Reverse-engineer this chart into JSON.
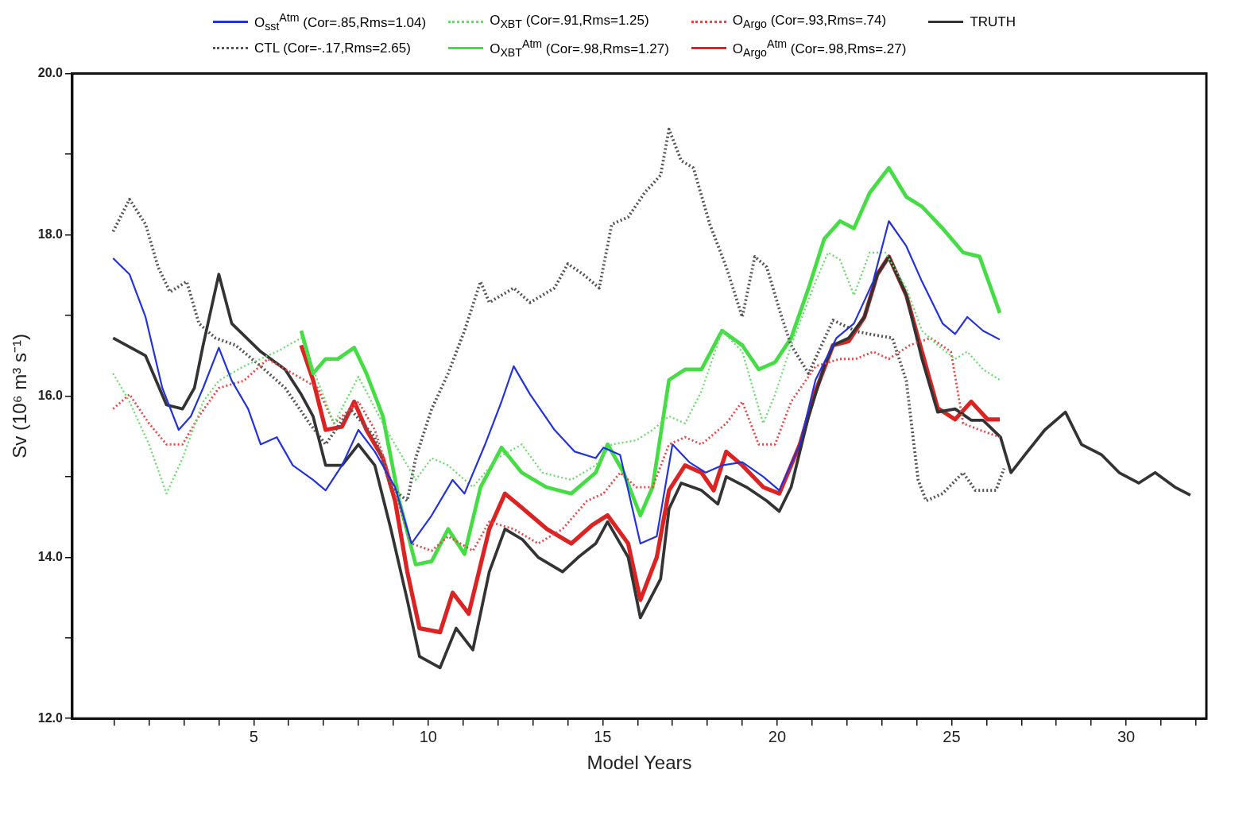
{
  "chart_data": {
    "type": "line",
    "xlabel": "Model Years",
    "ylabel": "Sv (10⁶ m³ s⁻¹)",
    "xlim": [
      -0.2,
      32.3
    ],
    "ylim": [
      12,
      20
    ],
    "xticks": [
      {
        "value": 1,
        "label": null
      },
      {
        "value": 2,
        "label": null
      },
      {
        "value": 3,
        "label": null
      },
      {
        "value": 4,
        "label": null
      },
      5,
      {
        "value": 6,
        "label": null
      },
      {
        "value": 7,
        "label": null
      },
      {
        "value": 8,
        "label": null
      },
      {
        "value": 9,
        "label": null
      },
      10,
      {
        "value": 11,
        "label": null
      },
      {
        "value": 12,
        "label": null
      },
      {
        "value": 13,
        "label": null
      },
      {
        "value": 14,
        "label": null
      },
      15,
      {
        "value": 16,
        "label": null
      },
      {
        "value": 17,
        "label": null
      },
      {
        "value": 18,
        "label": null
      },
      {
        "value": 19,
        "label": null
      },
      20,
      {
        "value": 21,
        "label": null
      },
      {
        "value": 22,
        "label": null
      },
      {
        "value": 23,
        "label": null
      },
      {
        "value": 24,
        "label": null
      },
      25,
      {
        "value": 26,
        "label": null
      },
      {
        "value": 27,
        "label": null
      },
      {
        "value": 28,
        "label": null
      },
      {
        "value": 29,
        "label": null
      },
      30,
      {
        "value": 31,
        "label": null
      },
      {
        "value": 32,
        "label": null
      }
    ],
    "yticks": [
      {
        "value": 12,
        "label": "12.0"
      },
      {
        "value": 13,
        "label": null
      },
      {
        "value": 14,
        "label": "14.0"
      },
      {
        "value": 15,
        "label": null
      },
      {
        "value": 16,
        "label": "16.0"
      },
      {
        "value": 17,
        "label": null
      },
      {
        "value": 18,
        "label": "18.0"
      },
      {
        "value": 19,
        "label": null
      },
      {
        "value": 20,
        "label": "20.0"
      }
    ],
    "grid": false,
    "legend": "top",
    "series": [
      {
        "name": "O$_{sst}$$^{Atm}$ (Cor=.85,Rms=1.04)",
        "color": "#2233dd",
        "line_style": "solid",
        "x": [
          0.97,
          1.44,
          1.9,
          2.38,
          2.85,
          3.2,
          3.55,
          4.0,
          4.37,
          4.84,
          5.2,
          5.66,
          6.12,
          6.7,
          7.06,
          7.53,
          8.0,
          8.47,
          9.05,
          9.52,
          10.1,
          10.7,
          11.04,
          11.63,
          12.1,
          12.45,
          12.92,
          13.62,
          14.2,
          14.8,
          15.02,
          15.5,
          16.08,
          16.55,
          17.0,
          17.48,
          17.95,
          18.42,
          19.0,
          19.6,
          20.06,
          20.65,
          21.1,
          21.7,
          22.2,
          22.75,
          23.2,
          23.7,
          24.15,
          24.74,
          25.1,
          25.45,
          25.9,
          26.38
        ],
        "values": [
          17.71,
          17.51,
          16.98,
          16.1,
          15.58,
          15.75,
          16.1,
          16.6,
          16.19,
          15.84,
          15.4,
          15.49,
          15.14,
          14.96,
          14.83,
          15.14,
          15.58,
          15.31,
          14.87,
          14.17,
          14.52,
          14.96,
          14.79,
          15.4,
          15.93,
          16.37,
          16.02,
          15.58,
          15.31,
          15.23,
          15.36,
          15.27,
          14.17,
          14.26,
          15.4,
          15.18,
          15.05,
          15.14,
          15.18,
          15.0,
          14.83,
          15.4,
          16.2,
          16.72,
          16.9,
          17.42,
          18.17,
          17.86,
          17.42,
          16.9,
          16.77,
          16.98,
          16.81,
          16.7
        ]
      },
      {
        "name": "O$_{XBT}$ (Cor=.91,Rms=1.25)",
        "color": "#66dd66",
        "line_style": "dotted",
        "x": [
          0.97,
          1.44,
          2.0,
          2.5,
          2.96,
          3.55,
          4.0,
          4.72,
          5.66,
          6.36,
          6.83,
          7.3,
          8.0,
          8.7,
          9.17,
          9.64,
          10.1,
          10.57,
          11.28,
          11.98,
          12.68,
          13.27,
          14.1,
          14.8,
          15.26,
          15.96,
          16.43,
          16.9,
          17.36,
          17.83,
          18.42,
          19.0,
          19.6,
          19.94,
          20.4,
          21.1,
          21.46,
          21.8,
          22.2,
          22.65,
          23.1,
          23.7,
          24.15,
          24.6,
          25.1,
          25.45,
          25.9,
          26.38
        ],
        "values": [
          16.28,
          15.93,
          15.4,
          14.79,
          15.23,
          15.93,
          16.19,
          16.37,
          16.55,
          16.72,
          16.19,
          15.66,
          16.24,
          15.66,
          15.31,
          14.96,
          15.23,
          15.14,
          14.87,
          15.23,
          15.4,
          15.05,
          14.96,
          15.14,
          15.4,
          15.45,
          15.58,
          15.75,
          15.66,
          16.06,
          16.81,
          16.55,
          15.66,
          16.02,
          16.63,
          17.42,
          17.78,
          17.69,
          17.25,
          17.78,
          17.78,
          17.34,
          16.81,
          16.63,
          16.46,
          16.55,
          16.33,
          16.2
        ]
      },
      {
        "name": "O$_{Argo}$ (Cor=.93,Rms=.74)",
        "color": "#ee4444",
        "line_style": "dotted",
        "x": [
          0.97,
          1.44,
          2.0,
          2.5,
          2.96,
          3.43,
          4.0,
          4.72,
          5.4,
          6.12,
          6.83,
          7.3,
          8.0,
          8.47,
          9.05,
          9.52,
          10.1,
          10.57,
          11.28,
          11.75,
          12.45,
          13.15,
          13.85,
          14.55,
          15.02,
          15.5,
          15.96,
          16.43,
          16.9,
          17.36,
          17.83,
          18.54,
          19.0,
          19.47,
          19.94,
          20.4,
          21.1,
          21.8,
          22.25,
          22.75,
          23.2,
          23.8,
          24.4,
          24.98,
          25.33,
          25.8,
          26.38
        ],
        "values": [
          15.84,
          16.02,
          15.66,
          15.4,
          15.4,
          15.75,
          16.1,
          16.19,
          16.46,
          16.28,
          16.1,
          15.66,
          15.93,
          15.58,
          14.79,
          14.17,
          14.08,
          14.26,
          14.08,
          14.44,
          14.35,
          14.17,
          14.35,
          14.7,
          14.79,
          15.05,
          14.87,
          14.87,
          15.4,
          15.49,
          15.4,
          15.66,
          15.93,
          15.4,
          15.4,
          15.93,
          16.37,
          16.46,
          16.46,
          16.55,
          16.46,
          16.63,
          16.72,
          16.55,
          15.66,
          15.58,
          15.49
        ]
      },
      {
        "name": "TRUTH",
        "color": "#333333",
        "line_style": "solid",
        "x": [
          0.97,
          1.9,
          2.5,
          2.96,
          3.3,
          3.55,
          4.0,
          4.37,
          5.2,
          5.9,
          6.36,
          6.7,
          7.06,
          7.53,
          8.0,
          8.47,
          8.93,
          9.4,
          9.75,
          10.34,
          10.8,
          11.28,
          11.75,
          12.2,
          12.7,
          13.15,
          13.85,
          14.3,
          14.8,
          15.14,
          15.73,
          16.08,
          16.66,
          16.9,
          17.25,
          17.83,
          18.3,
          18.54,
          19.12,
          19.7,
          20.06,
          20.4,
          20.9,
          21.35,
          21.6,
          22.05,
          22.5,
          22.87,
          23.2,
          23.7,
          24.15,
          24.6,
          25.1,
          25.56,
          25.9,
          26.4,
          26.7,
          27.1,
          27.67,
          28.26,
          28.72,
          29.3,
          29.8,
          30.36,
          30.83,
          31.4,
          31.84
        ],
        "values": [
          16.72,
          16.5,
          15.89,
          15.84,
          16.1,
          16.63,
          17.51,
          16.9,
          16.55,
          16.33,
          16.02,
          15.75,
          15.14,
          15.14,
          15.4,
          15.14,
          14.35,
          13.47,
          12.77,
          12.63,
          13.12,
          12.85,
          13.82,
          14.35,
          14.22,
          14.0,
          13.82,
          14.0,
          14.17,
          14.44,
          14.0,
          13.25,
          13.73,
          14.6,
          14.92,
          14.83,
          14.66,
          15.0,
          14.87,
          14.7,
          14.57,
          14.87,
          15.75,
          16.37,
          16.63,
          16.72,
          16.98,
          17.51,
          17.73,
          17.25,
          16.46,
          15.8,
          15.84,
          15.7,
          15.7,
          15.49,
          15.05,
          15.27,
          15.58,
          15.8,
          15.4,
          15.27,
          15.05,
          14.92,
          15.05,
          14.87,
          14.77
        ]
      },
      {
        "name": "CTL (Cor=-.17,Rms=2.65)",
        "color": "#555555",
        "line_style": "dotted",
        "x": [
          0.97,
          1.44,
          1.9,
          2.26,
          2.6,
          3.08,
          3.43,
          3.9,
          4.48,
          5.2,
          5.9,
          6.6,
          7.06,
          7.76,
          8.47,
          8.93,
          9.4,
          9.64,
          10.1,
          10.57,
          11.04,
          11.5,
          11.75,
          12.45,
          12.92,
          13.62,
          14.0,
          14.44,
          14.9,
          15.26,
          15.73,
          16.2,
          16.66,
          16.9,
          17.25,
          17.6,
          18.07,
          18.54,
          19.0,
          19.36,
          19.7,
          20.13,
          20.4,
          20.9,
          21.6,
          22.28,
          22.75,
          23.3,
          23.7,
          24.04,
          24.27,
          24.74,
          25.33,
          25.68,
          26.27,
          26.5
        ],
        "values": [
          18.04,
          18.44,
          18.13,
          17.6,
          17.29,
          17.42,
          16.9,
          16.72,
          16.63,
          16.37,
          16.1,
          15.66,
          15.4,
          15.84,
          15.49,
          14.87,
          14.7,
          15.23,
          15.84,
          16.28,
          16.81,
          17.42,
          17.16,
          17.34,
          17.16,
          17.34,
          17.64,
          17.51,
          17.34,
          18.13,
          18.22,
          18.52,
          18.74,
          19.31,
          18.92,
          18.83,
          18.13,
          17.6,
          16.98,
          17.73,
          17.6,
          16.98,
          16.63,
          16.28,
          16.94,
          16.8,
          16.76,
          16.72,
          16.19,
          14.96,
          14.7,
          14.79,
          15.05,
          14.83,
          14.83,
          15.1
        ]
      },
      {
        "name": "O$_{XBT}$$^{Atm}$ (Cor=.98,Rms=1.27)",
        "color": "#44dd44",
        "line_style": "solid",
        "x": [
          6.36,
          6.7,
          7.06,
          7.41,
          7.88,
          8.23,
          8.7,
          9.17,
          9.64,
          10.1,
          10.57,
          11.04,
          11.5,
          12.1,
          12.68,
          13.38,
          14.1,
          14.8,
          15.14,
          15.6,
          16.08,
          16.43,
          16.9,
          17.36,
          17.83,
          18.42,
          19.0,
          19.47,
          19.94,
          20.4,
          20.9,
          21.35,
          21.8,
          22.2,
          22.65,
          23.2,
          23.7,
          24.15,
          24.74,
          25.33,
          25.8,
          26.38
        ],
        "values": [
          16.81,
          16.28,
          16.46,
          16.46,
          16.6,
          16.28,
          15.75,
          14.7,
          13.91,
          13.95,
          14.35,
          14.04,
          14.87,
          15.36,
          15.05,
          14.87,
          14.79,
          15.05,
          15.4,
          15.05,
          14.52,
          14.87,
          16.2,
          16.33,
          16.33,
          16.81,
          16.63,
          16.33,
          16.42,
          16.72,
          17.34,
          17.95,
          18.17,
          18.08,
          18.52,
          18.83,
          18.47,
          18.35,
          18.08,
          17.78,
          17.73,
          17.03
        ]
      },
      {
        "name": "O$_{Argo}$$^{Atm}$ (Cor=.98,Rms=.27)",
        "color": "#dd2222",
        "line_style": "solid",
        "x": [
          6.36,
          6.7,
          7.06,
          7.53,
          7.88,
          8.23,
          8.7,
          9.05,
          9.4,
          9.75,
          10.34,
          10.7,
          11.16,
          11.75,
          12.2,
          12.7,
          13.4,
          14.1,
          14.7,
          15.14,
          15.73,
          16.08,
          16.55,
          16.9,
          17.36,
          17.83,
          18.18,
          18.54,
          19.0,
          19.6,
          20.06,
          20.65,
          21.1,
          21.6,
          22.05,
          22.5,
          22.87,
          23.2,
          23.7,
          24.15,
          24.6,
          25.1,
          25.56,
          26.03,
          26.38
        ],
        "values": [
          16.63,
          16.2,
          15.58,
          15.62,
          15.93,
          15.58,
          15.23,
          14.7,
          13.82,
          13.12,
          13.07,
          13.56,
          13.3,
          14.35,
          14.79,
          14.61,
          14.35,
          14.17,
          14.4,
          14.52,
          14.17,
          13.47,
          14.0,
          14.83,
          15.14,
          15.05,
          14.83,
          15.31,
          15.14,
          14.87,
          14.79,
          15.4,
          16.06,
          16.63,
          16.68,
          16.98,
          17.51,
          17.73,
          17.25,
          16.55,
          15.85,
          15.71,
          15.93,
          15.71,
          15.71
        ]
      }
    ]
  }
}
